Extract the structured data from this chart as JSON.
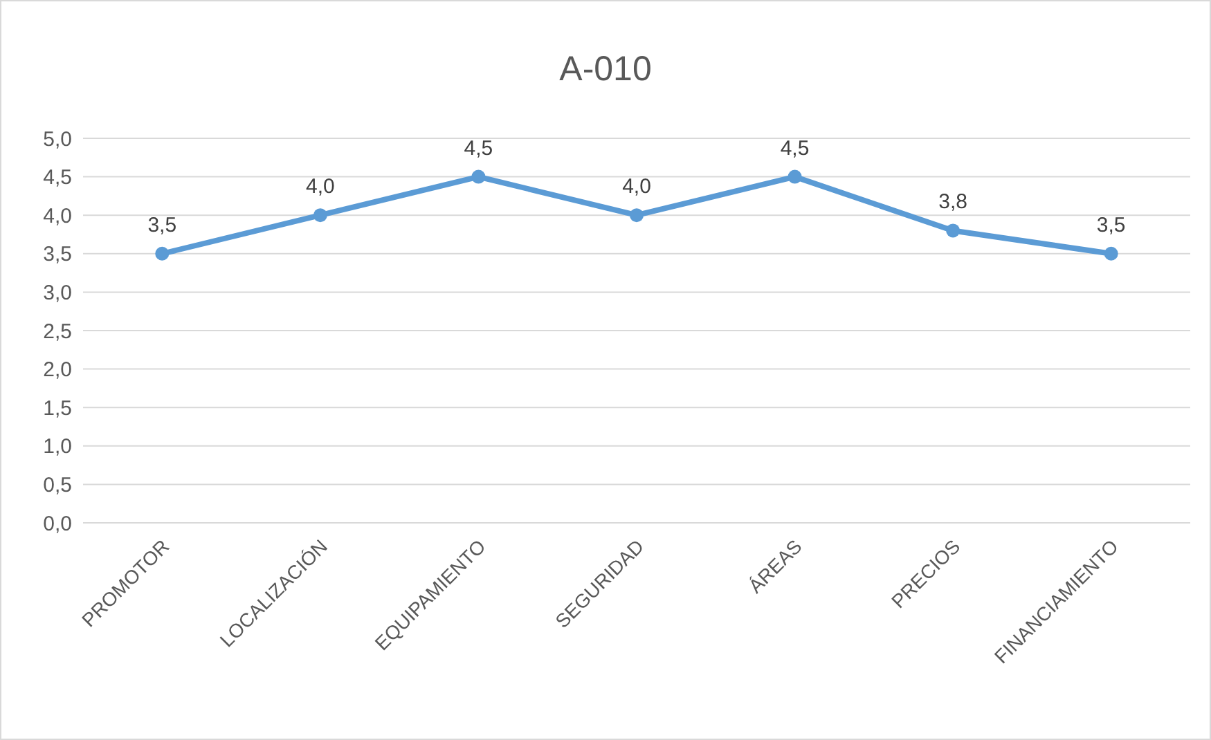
{
  "chart_data": {
    "type": "line",
    "title": "A-010",
    "categories": [
      "PROMOTOR",
      "LOCALIZACIÓN",
      "EQUIPAMIENTO",
      "SEGURIDAD",
      "ÁREAS",
      "PRECIOS",
      "FINANCIAMIENTO"
    ],
    "series": [
      {
        "color": "#5b9bd5",
        "values": [
          3.5,
          4.0,
          4.5,
          4.0,
          4.5,
          3.8,
          3.5
        ],
        "value_labels": [
          "3,5",
          "4,0",
          "4,5",
          "4,0",
          "4,5",
          "3,8",
          "3,5"
        ]
      }
    ],
    "ylim": [
      0,
      5
    ],
    "yticks": [
      {
        "value": 0,
        "label": "0,0"
      },
      {
        "value": 0.5,
        "label": "0,5"
      },
      {
        "value": 1,
        "label": "1,0"
      },
      {
        "value": 1.5,
        "label": "1,5"
      },
      {
        "value": 2,
        "label": "2,0"
      },
      {
        "value": 2.5,
        "label": "2,5"
      },
      {
        "value": 3,
        "label": "3,0"
      },
      {
        "value": 3.5,
        "label": "3,5"
      },
      {
        "value": 4,
        "label": "4,0"
      },
      {
        "value": 4.5,
        "label": "4,5"
      },
      {
        "value": 5,
        "label": "5,0"
      }
    ],
    "grid": "y",
    "marker": "circle",
    "line_style": "solid"
  }
}
